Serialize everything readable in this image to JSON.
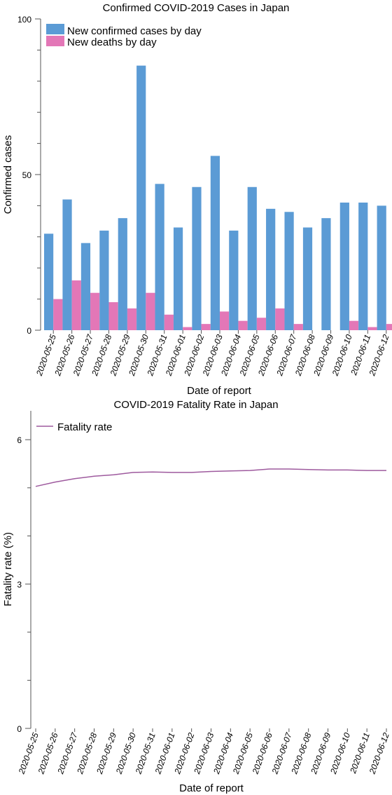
{
  "colors": {
    "cases": "#5b9bd5",
    "deaths": "#e377b7",
    "fatality_line": "#9e5a9e",
    "axis": "#555555"
  },
  "chart_data": [
    {
      "type": "bar",
      "title": "Confirmed COVID-2019 Cases in Japan",
      "xlabel": "Date of report",
      "ylabel": "Confirmed cases",
      "ylim": [
        0,
        100
      ],
      "yticks": [
        0,
        50,
        100
      ],
      "legend_position": "top-left",
      "grid": false,
      "categories": [
        "2020-05-25",
        "2020-05-26",
        "2020-05-27",
        "2020-05-28",
        "2020-05-29",
        "2020-05-30",
        "2020-05-31",
        "2020-06-01",
        "2020-06-02",
        "2020-06-03",
        "2020-06-04",
        "2020-06-05",
        "2020-06-06",
        "2020-06-07",
        "2020-06-08",
        "2020-06-09",
        "2020-06-10",
        "2020-06-11",
        "2020-06-12"
      ],
      "series": [
        {
          "name": "New confirmed cases by day",
          "values": [
            31,
            42,
            28,
            32,
            36,
            85,
            47,
            33,
            46,
            56,
            32,
            46,
            39,
            38,
            33,
            36,
            41,
            41,
            40
          ]
        },
        {
          "name": "New deaths by day",
          "values": [
            10,
            16,
            12,
            9,
            7,
            12,
            5,
            1,
            2,
            6,
            3,
            4,
            7,
            2,
            0,
            0,
            3,
            1,
            2
          ]
        }
      ]
    },
    {
      "type": "line",
      "title": "COVID-2019 Fatality Rate in Japan",
      "xlabel": "Date of report",
      "ylabel": "Fatality rate (%)",
      "ylim": [
        0,
        6.6
      ],
      "yticks": [
        0,
        3,
        6
      ],
      "legend_position": "top-left",
      "grid": false,
      "x": [
        "2020-05-25",
        "2020-05-26",
        "2020-05-27",
        "2020-05-28",
        "2020-05-29",
        "2020-05-30",
        "2020-05-31",
        "2020-06-01",
        "2020-06-02",
        "2020-06-03",
        "2020-06-04",
        "2020-06-05",
        "2020-06-06",
        "2020-06-07",
        "2020-06-08",
        "2020-06-09",
        "2020-06-10",
        "2020-06-11",
        "2020-06-12"
      ],
      "series": [
        {
          "name": "Fatality rate",
          "values": [
            5.03,
            5.12,
            5.19,
            5.24,
            5.27,
            5.32,
            5.33,
            5.32,
            5.32,
            5.34,
            5.35,
            5.36,
            5.39,
            5.39,
            5.38,
            5.37,
            5.37,
            5.36,
            5.36
          ]
        }
      ]
    }
  ]
}
